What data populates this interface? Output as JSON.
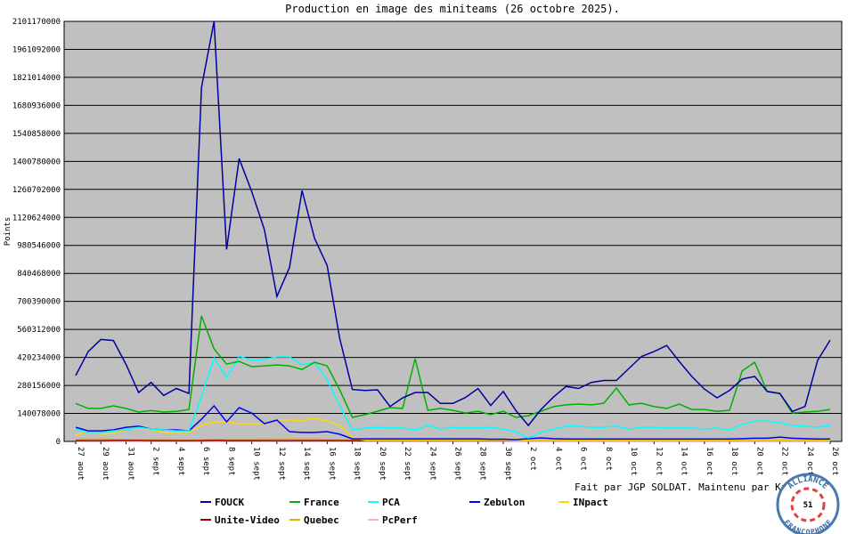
{
  "chart_data": {
    "type": "line",
    "title": "Production en image des miniteams (26 octobre 2025).",
    "y_label": "Points",
    "footer": "Fait par JGP SOLDAT. Maintenu par Kana-chan.",
    "logo": {
      "top": "ALLIANCE",
      "bottom": "FRANCOPHONE",
      "center": "51"
    },
    "ylim": [
      0,
      2101170000
    ],
    "yticks": [
      0,
      140078000,
      280156000,
      420234000,
      560312000,
      700390000,
      840468000,
      980546000,
      1120624000,
      1260702000,
      1400780000,
      1540858000,
      1680936000,
      1821014000,
      1961092000,
      2101170000
    ],
    "grid": true,
    "categories": [
      "27 aout",
      null,
      "29 aout",
      null,
      "31 aout",
      null,
      "2 sept",
      null,
      "4 sept",
      null,
      "6 sept",
      null,
      "8 sept",
      null,
      "10 sept",
      null,
      "12 sept",
      null,
      "14 sept",
      null,
      "16 sept",
      null,
      "18 sept",
      null,
      "20 sept",
      null,
      "22 sept",
      null,
      "24 sept",
      null,
      "26 sept",
      null,
      "28 sept",
      null,
      "30 sept",
      null,
      "2 oct",
      null,
      "4 oct",
      null,
      "6 oct",
      null,
      "8 oct",
      null,
      "10 oct",
      null,
      "12 oct",
      null,
      "14 oct",
      null,
      "16 oct",
      null,
      "18 oct",
      null,
      "20 oct",
      null,
      "22 oct",
      null,
      "24 oct",
      null,
      "26 oct"
    ],
    "series": [
      {
        "name": "FOUCK",
        "color": "#0000a0",
        "values": [
          330000000.0,
          450000000.0,
          510000000.0,
          505000000.0,
          385000000.0,
          245000000.0,
          295000000.0,
          230000000.0,
          265000000.0,
          240000000.0,
          1770000000.0,
          2101170000,
          960000000.0,
          1415000000.0,
          1250000000.0,
          1060000000.0,
          725000000.0,
          870000000.0,
          1255000000.0,
          1015000000.0,
          880000000.0,
          515000000.0,
          260000000.0,
          255000000.0,
          258000000.0,
          175000000.0,
          218000000.0,
          245000000.0,
          245000000.0,
          190000000.0,
          190000000.0,
          220000000.0,
          265000000.0,
          180000000.0,
          250000000.0,
          155000000.0,
          80000000.0,
          160000000.0,
          222000000.0,
          275000000.0,
          265000000.0,
          295000000.0,
          305000000.0,
          305000000.0,
          365000000.0,
          425000000.0,
          450000000.0,
          480000000.0,
          400000000.0,
          325000000.0,
          262000000.0,
          218000000.0,
          255000000.0,
          312000000.0,
          325000000.0,
          250000000.0,
          240000000.0,
          150000000.0,
          175000000.0,
          405000000.0,
          507000000.0
        ]
      },
      {
        "name": "France",
        "color": "#00b000",
        "values": [
          190000000.0,
          165000000.0,
          165000000.0,
          178000000.0,
          165000000.0,
          147000000.0,
          155000000.0,
          147000000.0,
          150000000.0,
          160000000.0,
          628000000.0,
          463000000.0,
          387000000.0,
          400000000.0,
          374000000.0,
          378000000.0,
          383000000.0,
          378000000.0,
          360000000.0,
          396000000.0,
          378000000.0,
          258000000.0,
          120000000.0,
          134000000.0,
          151000000.0,
          169000000.0,
          165000000.0,
          414000000.0,
          156000000.0,
          165000000.0,
          156000000.0,
          142000000.0,
          151000000.0,
          134000000.0,
          151000000.0,
          120000000.0,
          129000000.0,
          151000000.0,
          174000000.0,
          183000000.0,
          187000000.0,
          183000000.0,
          191000000.0,
          267000000.0,
          183000000.0,
          191000000.0,
          174000000.0,
          165000000.0,
          187000000.0,
          160000000.0,
          160000000.0,
          151000000.0,
          156000000.0,
          352000000.0,
          396000000.0,
          249000000.0,
          240000000.0,
          142000000.0,
          147000000.0,
          151000000.0,
          160000000.0
        ]
      },
      {
        "name": "PCA",
        "color": "#00ffff",
        "values": [
          62000000.0,
          45000000.0,
          45000000.0,
          53000000.0,
          58000000.0,
          71000000.0,
          62000000.0,
          58000000.0,
          53000000.0,
          53000000.0,
          227000000.0,
          418000000.0,
          320000000.0,
          427000000.0,
          405000000.0,
          410000000.0,
          423000000.0,
          423000000.0,
          383000000.0,
          396000000.0,
          307000000.0,
          178000000.0,
          58000000.0,
          67000000.0,
          71000000.0,
          67000000.0,
          67000000.0,
          58000000.0,
          80000000.0,
          62000000.0,
          71000000.0,
          67000000.0,
          67000000.0,
          71000000.0,
          62000000.0,
          49000000.0,
          18000000.0,
          45000000.0,
          62000000.0,
          76000000.0,
          76000000.0,
          71000000.0,
          71000000.0,
          76000000.0,
          62000000.0,
          71000000.0,
          71000000.0,
          67000000.0,
          67000000.0,
          67000000.0,
          62000000.0,
          67000000.0,
          58000000.0,
          85000000.0,
          102000000.0,
          102000000.0,
          93000000.0,
          80000000.0,
          76000000.0,
          71000000.0,
          80000000.0
        ]
      },
      {
        "name": "Zebulon",
        "color": "#0000ff",
        "values": [
          71000000.0,
          53000000.0,
          53000000.0,
          58000000.0,
          71000000.0,
          76000000.0,
          62000000.0,
          58000000.0,
          58000000.0,
          53000000.0,
          111000000.0,
          178000000.0,
          98000000.0,
          169000000.0,
          142000000.0,
          89000000.0,
          107000000.0,
          49000000.0,
          45000000.0,
          45000000.0,
          49000000.0,
          36000000.0,
          13000000.0,
          13000000.0,
          13000000.0,
          13000000.0,
          13000000.0,
          13000000.0,
          13000000.0,
          13000000.0,
          13000000.0,
          13000000.0,
          13000000.0,
          11000000.0,
          11000000.0,
          9000000.0,
          14000000.0,
          18000000.0,
          14000000.0,
          12000000.0,
          12000000.0,
          12000000.0,
          12000000.0,
          12000000.0,
          12000000.0,
          12000000.0,
          12000000.0,
          12000000.0,
          12000000.0,
          12000000.0,
          12000000.0,
          12000000.0,
          12000000.0,
          14000000.0,
          16000000.0,
          16000000.0,
          22000000.0,
          16000000.0,
          14000000.0,
          12000000.0,
          12000000.0
        ]
      },
      {
        "name": "INpact",
        "color": "#ffd700",
        "values": [
          31000000.0,
          53000000.0,
          36000000.0,
          40000000.0,
          58000000.0,
          71000000.0,
          58000000.0,
          45000000.0,
          45000000.0,
          45000000.0,
          80000000.0,
          98000000.0,
          98000000.0,
          89000000.0,
          89000000.0,
          89000000.0,
          107000000.0,
          107000000.0,
          102000000.0,
          116000000.0,
          102000000.0,
          80000000.0,
          22000000.0,
          5000000.0,
          5000000.0,
          5000000.0,
          5000000.0,
          5000000.0,
          5000000.0,
          5000000.0,
          5000000.0,
          5000000.0,
          5000000.0,
          5000000.0,
          5000000.0,
          4000000.0,
          4000000.0,
          4000000.0,
          4000000.0,
          4000000.0,
          4000000.0,
          4000000.0,
          4000000.0,
          4000000.0,
          4000000.0,
          4000000.0,
          4000000.0,
          4000000.0,
          4000000.0,
          4000000.0,
          4000000.0,
          4000000.0,
          4000000.0,
          4000000.0,
          4000000.0,
          4000000.0,
          4000000.0,
          4000000.0,
          4000000.0,
          4000000.0,
          4000000.0
        ]
      },
      {
        "name": "Unite-Video",
        "color": "#a00000",
        "values": [
          4000000.0,
          4000000.0,
          4000000.0,
          5000000.0,
          5000000.0,
          5000000.0,
          4000000.0,
          4000000.0,
          4000000.0,
          4000000.0,
          4000000.0,
          6000000.0,
          4000000.0,
          4000000.0,
          4000000.0,
          4000000.0,
          4000000.0,
          4000000.0,
          4000000.0,
          4000000.0,
          4000000.0,
          4000000.0,
          3000000.0,
          3000000.0,
          3000000.0,
          3000000.0,
          3000000.0,
          3000000.0,
          3000000.0,
          3000000.0,
          3000000.0,
          3000000.0,
          3000000.0,
          3000000.0,
          3000000.0,
          3000000.0,
          3000000.0,
          3000000.0,
          3000000.0,
          3000000.0,
          3000000.0,
          3000000.0,
          3000000.0,
          3000000.0,
          3000000.0,
          3000000.0,
          3000000.0,
          3000000.0,
          3000000.0,
          3000000.0,
          3000000.0,
          3000000.0,
          3000000.0,
          3000000.0,
          3000000.0,
          3000000.0,
          3000000.0,
          3000000.0,
          3000000.0,
          3000000.0,
          3000000.0
        ]
      },
      {
        "name": "Quebec",
        "color": "#e0b000",
        "values": [
          10000000.0,
          12000000.0,
          12000000.0,
          10000000.0,
          10000000.0,
          9000000.0,
          9000000.0,
          9000000.0,
          8000000.0,
          8000000.0,
          9000000.0,
          10000000.0,
          10000000.0,
          10000000.0,
          10000000.0,
          11000000.0,
          12000000.0,
          12000000.0,
          11000000.0,
          11000000.0,
          10000000.0,
          9000000.0,
          8000000.0,
          8000000.0,
          8000000.0,
          8000000.0,
          8000000.0,
          8000000.0,
          8000000.0,
          8000000.0,
          8000000.0,
          8000000.0,
          8000000.0,
          8000000.0,
          8000000.0,
          7000000.0,
          7000000.0,
          7000000.0,
          7000000.0,
          7000000.0,
          7000000.0,
          7000000.0,
          7000000.0,
          7000000.0,
          7000000.0,
          7000000.0,
          7000000.0,
          7000000.0,
          7000000.0,
          7000000.0,
          7000000.0,
          7000000.0,
          7000000.0,
          7000000.0,
          7000000.0,
          7000000.0,
          7000000.0,
          7000000.0,
          7000000.0,
          7000000.0,
          7000000.0
        ]
      },
      {
        "name": "PcPerf",
        "color": "#ffb0c0",
        "values": [
          2000000.0,
          2000000.0,
          2000000.0,
          2000000.0,
          2000000.0,
          2000000.0,
          2000000.0,
          2000000.0,
          2000000.0,
          2000000.0,
          2000000.0,
          2000000.0,
          2000000.0,
          2000000.0,
          2000000.0,
          2000000.0,
          2000000.0,
          2000000.0,
          2000000.0,
          2000000.0,
          2000000.0,
          2000000.0,
          2000000.0,
          2000000.0,
          2000000.0,
          2000000.0,
          2000000.0,
          2000000.0,
          2000000.0,
          2000000.0,
          2000000.0,
          2000000.0,
          2000000.0,
          2000000.0,
          2000000.0,
          2000000.0,
          2000000.0,
          2000000.0,
          2000000.0,
          2000000.0,
          2000000.0,
          2000000.0,
          2000000.0,
          2000000.0,
          2000000.0,
          2000000.0,
          2000000.0,
          2000000.0,
          2000000.0,
          2000000.0,
          2000000.0,
          2000000.0,
          2000000.0,
          2000000.0,
          2000000.0,
          2000000.0,
          2000000.0,
          2000000.0,
          2000000.0,
          2000000.0,
          2000000.0
        ]
      }
    ]
  }
}
